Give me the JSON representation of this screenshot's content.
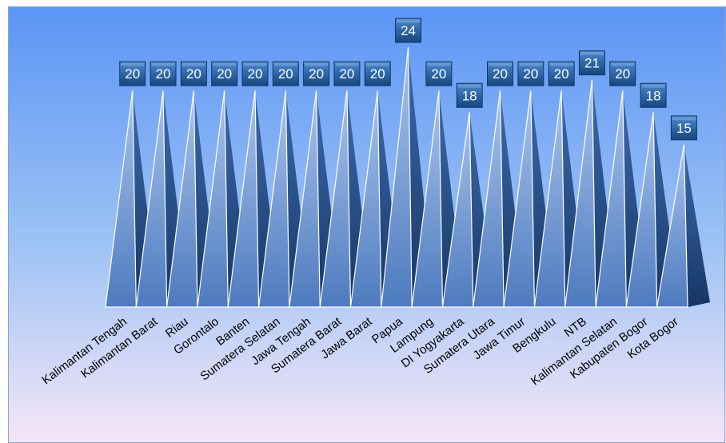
{
  "chart_data": {
    "type": "bar",
    "bar_shape": "pyramid",
    "categories": [
      "Kalimantan Tengah",
      "Kalimantan Barat",
      "Riau",
      "Gorontalo",
      "Banten",
      "Sumatera Selatan",
      "Jawa Tengah",
      "Sumatera Barat",
      "Jawa Barat",
      "Papua",
      "Lampung",
      "DI Yogyakarta",
      "Sumatera Utara",
      "Jawa Timur",
      "Bengkulu",
      "NTB",
      "Kalimantan Selatan",
      "Kabupaten Bogor",
      "Kota Bogor"
    ],
    "values": [
      20,
      20,
      20,
      20,
      20,
      20,
      20,
      20,
      20,
      24,
      20,
      18,
      20,
      20,
      20,
      21,
      20,
      18,
      15
    ],
    "title": "",
    "xlabel": "",
    "ylabel": "",
    "ylim": [
      0,
      24
    ],
    "grid": false,
    "legend": "none",
    "data_labels": true,
    "colors": {
      "background_top": "#5b95f5",
      "background_bottom": "#f6e6f6",
      "bar_light": "#6f98d6",
      "bar_dark": "#1e4279",
      "label_box": "#1d5a9f"
    }
  }
}
